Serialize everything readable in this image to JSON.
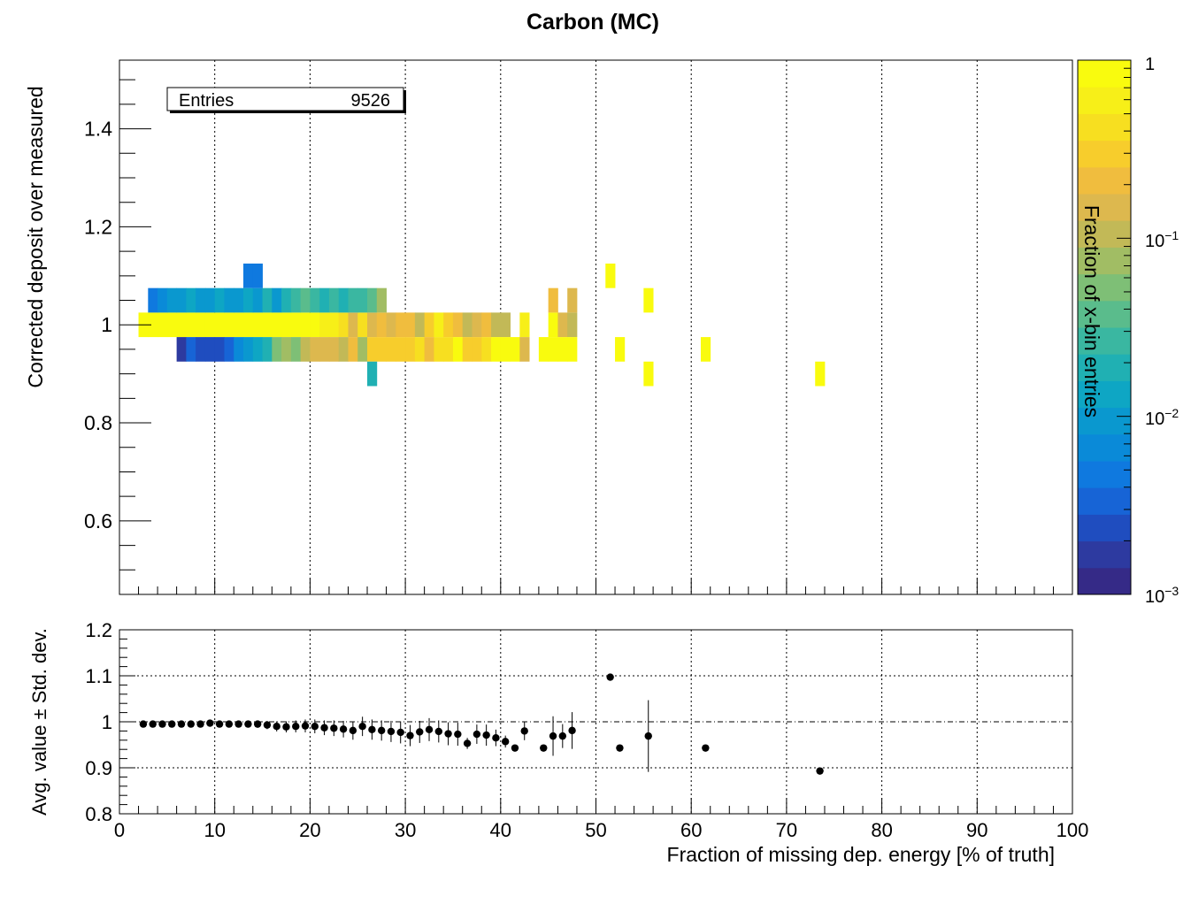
{
  "title": "Carbon (MC)",
  "chart_data": [
    {
      "type": "heatmap",
      "title": "Carbon (MC)",
      "xlabel": "",
      "ylabel": "Corrected deposit over measured",
      "xlim": [
        0,
        100
      ],
      "ylim": [
        0.45,
        1.54
      ],
      "x_bin_width": 1,
      "y_bin_width": 0.05,
      "y_ticks": [
        "0.6",
        "0.8",
        "1",
        "1.2",
        "1.4"
      ],
      "y_tick_values": [
        0.6,
        0.8,
        1.0,
        1.2,
        1.4
      ],
      "grid": "vertical",
      "stats_box": {
        "label": "Entries",
        "value": "9526"
      },
      "colorbar": {
        "label": "Fraction of x-bin entries",
        "scale": "log",
        "range": [
          0.001,
          1
        ],
        "ticks": [
          "1",
          "10^-1",
          "10^-2",
          "10^-3"
        ],
        "colors": [
          "#352a87",
          "#2d3aa0",
          "#1f4dbf",
          "#1764d6",
          "#0f79df",
          "#0a8ad8",
          "#0a98cf",
          "#0ea6c4",
          "#20b0b3",
          "#3ab7a1",
          "#5abc8c",
          "#7ebf76",
          "#a1bd64",
          "#c2b957",
          "#ddb84e",
          "#f0bd3e",
          "#f7cd2c",
          "#f7df20",
          "#f7ef18",
          "#f9fb0e"
        ]
      },
      "cells": [
        [
          2,
          1.0,
          1.0
        ],
        [
          3,
          1.0,
          1.0
        ],
        [
          4,
          1.0,
          1.0
        ],
        [
          5,
          1.0,
          1.0
        ],
        [
          6,
          1.0,
          1.0
        ],
        [
          7,
          1.0,
          1.0
        ],
        [
          8,
          1.0,
          1.0
        ],
        [
          9,
          1.0,
          1.0
        ],
        [
          10,
          1.0,
          1.0
        ],
        [
          11,
          1.0,
          1.0
        ],
        [
          12,
          1.0,
          1.0
        ],
        [
          13,
          1.0,
          1.0
        ],
        [
          14,
          1.0,
          1.0
        ],
        [
          15,
          1.0,
          1.0
        ],
        [
          16,
          1.0,
          1.0
        ],
        [
          17,
          1.0,
          1.0
        ],
        [
          18,
          1.0,
          1.0
        ],
        [
          19,
          1.0,
          0.95
        ],
        [
          20,
          1.0,
          0.95
        ],
        [
          21,
          1.0,
          0.9
        ],
        [
          22,
          1.0,
          0.9
        ],
        [
          23,
          1.0,
          0.85
        ],
        [
          24,
          1.0,
          0.7
        ],
        [
          25,
          1.0,
          0.85
        ],
        [
          26,
          1.0,
          0.7
        ],
        [
          27,
          1.0,
          0.75
        ],
        [
          28,
          1.0,
          0.7
        ],
        [
          29,
          1.0,
          0.75
        ],
        [
          30,
          1.0,
          0.75
        ],
        [
          31,
          1.0,
          0.65
        ],
        [
          32,
          1.0,
          0.8
        ],
        [
          33,
          1.0,
          0.9
        ],
        [
          34,
          1.0,
          0.8
        ],
        [
          35,
          1.0,
          0.75
        ],
        [
          36,
          1.0,
          0.65
        ],
        [
          37,
          1.0,
          0.7
        ],
        [
          38,
          1.0,
          0.75
        ],
        [
          39,
          1.0,
          0.65
        ],
        [
          40,
          1.0,
          0.65
        ],
        [
          42,
          1.0,
          0.9
        ],
        [
          45,
          1.0,
          0.95
        ],
        [
          46,
          1.0,
          0.7
        ],
        [
          47,
          1.0,
          0.65
        ],
        [
          3,
          1.05,
          0.2
        ],
        [
          4,
          1.05,
          0.25
        ],
        [
          5,
          1.05,
          0.3
        ],
        [
          6,
          1.05,
          0.3
        ],
        [
          7,
          1.05,
          0.35
        ],
        [
          8,
          1.05,
          0.3
        ],
        [
          9,
          1.05,
          0.3
        ],
        [
          10,
          1.05,
          0.35
        ],
        [
          11,
          1.05,
          0.3
        ],
        [
          12,
          1.05,
          0.3
        ],
        [
          13,
          1.05,
          0.35
        ],
        [
          14,
          1.05,
          0.3
        ],
        [
          15,
          1.05,
          0.4
        ],
        [
          16,
          1.05,
          0.3
        ],
        [
          17,
          1.05,
          0.4
        ],
        [
          18,
          1.05,
          0.45
        ],
        [
          19,
          1.05,
          0.5
        ],
        [
          20,
          1.05,
          0.45
        ],
        [
          21,
          1.05,
          0.4
        ],
        [
          22,
          1.05,
          0.45
        ],
        [
          23,
          1.05,
          0.4
        ],
        [
          24,
          1.05,
          0.45
        ],
        [
          25,
          1.05,
          0.45
        ],
        [
          26,
          1.05,
          0.5
        ],
        [
          27,
          1.05,
          0.6
        ],
        [
          45,
          1.05,
          0.75
        ],
        [
          47,
          1.05,
          0.7
        ],
        [
          55,
          1.05,
          0.95
        ],
        [
          6,
          0.95,
          0.05
        ],
        [
          7,
          0.95,
          0.15
        ],
        [
          8,
          0.95,
          0.1
        ],
        [
          9,
          0.95,
          0.1
        ],
        [
          10,
          0.95,
          0.1
        ],
        [
          11,
          0.95,
          0.15
        ],
        [
          12,
          0.95,
          0.25
        ],
        [
          13,
          0.95,
          0.3
        ],
        [
          14,
          0.95,
          0.35
        ],
        [
          15,
          0.95,
          0.4
        ],
        [
          16,
          0.95,
          0.55
        ],
        [
          17,
          0.95,
          0.6
        ],
        [
          18,
          0.95,
          0.55
        ],
        [
          19,
          0.95,
          0.65
        ],
        [
          20,
          0.95,
          0.7
        ],
        [
          21,
          0.95,
          0.7
        ],
        [
          22,
          0.95,
          0.7
        ],
        [
          23,
          0.95,
          0.65
        ],
        [
          24,
          0.95,
          0.75
        ],
        [
          25,
          0.95,
          0.6
        ],
        [
          26,
          0.95,
          0.8
        ],
        [
          27,
          0.95,
          0.8
        ],
        [
          28,
          0.95,
          0.8
        ],
        [
          29,
          0.95,
          0.8
        ],
        [
          30,
          0.95,
          0.8
        ],
        [
          31,
          0.95,
          0.85
        ],
        [
          32,
          0.95,
          0.75
        ],
        [
          33,
          0.95,
          0.85
        ],
        [
          34,
          0.95,
          0.85
        ],
        [
          35,
          0.95,
          0.95
        ],
        [
          36,
          0.95,
          0.8
        ],
        [
          37,
          0.95,
          0.8
        ],
        [
          38,
          0.95,
          0.85
        ],
        [
          39,
          0.95,
          0.95
        ],
        [
          40,
          0.95,
          0.95
        ],
        [
          41,
          0.95,
          0.95
        ],
        [
          42,
          0.95,
          0.7
        ],
        [
          44,
          0.95,
          1.0
        ],
        [
          45,
          0.95,
          1.0
        ],
        [
          46,
          0.95,
          0.95
        ],
        [
          47,
          0.95,
          0.95
        ],
        [
          52,
          0.95,
          1.0
        ],
        [
          61,
          0.95,
          1.0
        ],
        [
          13,
          1.1,
          0.2
        ],
        [
          14,
          1.1,
          0.2
        ],
        [
          51,
          1.1,
          1.0
        ],
        [
          26,
          0.9,
          0.4
        ],
        [
          55,
          0.9,
          1.0
        ],
        [
          73,
          0.9,
          1.0
        ]
      ]
    },
    {
      "type": "scatter",
      "title": "",
      "xlabel": "Fraction of missing dep. energy  [% of truth]",
      "ylabel": "Avg. value ± Std. dev.",
      "xlim": [
        0,
        100
      ],
      "ylim": [
        0.8,
        1.2
      ],
      "x_ticks": [
        "0",
        "10",
        "20",
        "30",
        "40",
        "50",
        "60",
        "70",
        "80",
        "90",
        "100"
      ],
      "x_tick_values": [
        0,
        10,
        20,
        30,
        40,
        50,
        60,
        70,
        80,
        90,
        100
      ],
      "y_ticks": [
        "0.8",
        "0.9",
        "1",
        "1.1",
        "1.2"
      ],
      "y_tick_values": [
        0.8,
        0.9,
        1.0,
        1.1,
        1.2
      ],
      "grid": "both",
      "reference_line": 1.0,
      "points": [
        [
          2.5,
          0.995,
          0.003
        ],
        [
          3.5,
          0.995,
          0.003
        ],
        [
          4.5,
          0.995,
          0.003
        ],
        [
          5.5,
          0.995,
          0.003
        ],
        [
          6.5,
          0.995,
          0.003
        ],
        [
          7.5,
          0.995,
          0.003
        ],
        [
          8.5,
          0.995,
          0.004
        ],
        [
          9.5,
          0.997,
          0.004
        ],
        [
          10.5,
          0.995,
          0.005
        ],
        [
          11.5,
          0.995,
          0.005
        ],
        [
          12.5,
          0.995,
          0.006
        ],
        [
          13.5,
          0.995,
          0.007
        ],
        [
          14.5,
          0.995,
          0.008
        ],
        [
          15.5,
          0.993,
          0.009
        ],
        [
          16.5,
          0.99,
          0.011
        ],
        [
          17.5,
          0.989,
          0.012
        ],
        [
          18.5,
          0.99,
          0.013
        ],
        [
          19.5,
          0.991,
          0.014
        ],
        [
          20.5,
          0.99,
          0.015
        ],
        [
          21.5,
          0.987,
          0.016
        ],
        [
          22.5,
          0.986,
          0.017
        ],
        [
          23.5,
          0.984,
          0.018
        ],
        [
          24.5,
          0.981,
          0.02
        ],
        [
          25.5,
          0.99,
          0.021
        ],
        [
          26.5,
          0.983,
          0.022
        ],
        [
          27.5,
          0.981,
          0.022
        ],
        [
          28.5,
          0.979,
          0.023
        ],
        [
          29.5,
          0.977,
          0.024
        ],
        [
          30.5,
          0.97,
          0.023
        ],
        [
          31.5,
          0.978,
          0.024
        ],
        [
          32.5,
          0.983,
          0.025
        ],
        [
          33.5,
          0.979,
          0.024
        ],
        [
          34.5,
          0.974,
          0.025
        ],
        [
          35.5,
          0.973,
          0.025
        ],
        [
          36.5,
          0.953,
          0.012
        ],
        [
          37.5,
          0.973,
          0.021
        ],
        [
          38.5,
          0.971,
          0.023
        ],
        [
          39.5,
          0.965,
          0.018
        ],
        [
          40.5,
          0.957,
          0.013
        ],
        [
          41.5,
          0.943,
          0.005
        ],
        [
          42.5,
          0.98,
          0.02
        ],
        [
          44.5,
          0.943,
          0.003
        ],
        [
          45.5,
          0.969,
          0.043
        ],
        [
          46.5,
          0.969,
          0.026
        ],
        [
          47.5,
          0.981,
          0.04
        ],
        [
          51.5,
          1.097,
          0.003
        ],
        [
          52.5,
          0.943,
          0.003
        ],
        [
          55.5,
          0.969,
          0.078
        ],
        [
          61.5,
          0.943,
          0.003
        ],
        [
          73.5,
          0.893,
          0.003
        ]
      ]
    }
  ]
}
